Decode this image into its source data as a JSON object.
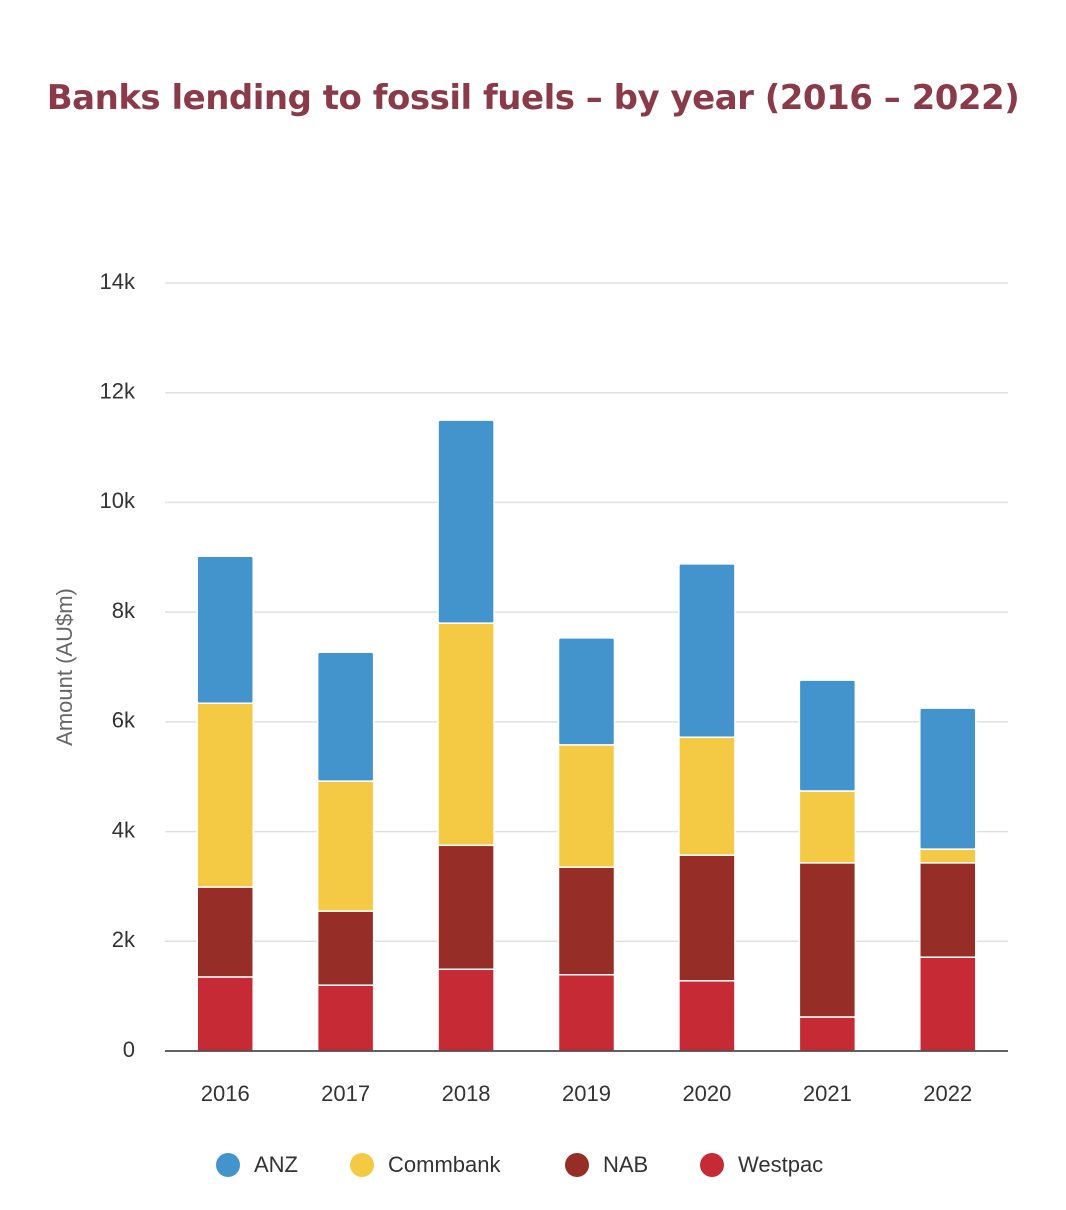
{
  "chart_data": {
    "type": "stacked-bar",
    "title": "Banks lending to fossil fuels – by year (2016 – 2022)",
    "y_label": "Amount (AU$m)",
    "categories": [
      "2016",
      "2017",
      "2018",
      "2019",
      "2020",
      "2021",
      "2022"
    ],
    "series": [
      {
        "name": "ANZ",
        "color": "#4394cc",
        "values": [
          2680,
          2350,
          3700,
          1950,
          3160,
          2020,
          2570
        ]
      },
      {
        "name": "Commbank",
        "color": "#f4ca44",
        "values": [
          3350,
          2370,
          4050,
          2230,
          2150,
          1310,
          250
        ]
      },
      {
        "name": "NAB",
        "color": "#962d26",
        "values": [
          1640,
          1350,
          2260,
          1960,
          2290,
          2810,
          1720
        ]
      },
      {
        "name": "Westpac",
        "color": "#c52a35",
        "values": [
          1350,
          1200,
          1490,
          1390,
          1280,
          620,
          1710
        ]
      }
    ],
    "ylim": [
      0,
      14000
    ],
    "yticks": [
      0,
      {
        "value": 2000,
        "label": "2k"
      },
      {
        "value": 4000,
        "label": "4k"
      },
      {
        "value": 6000,
        "label": "6k"
      },
      {
        "value": 8000,
        "label": "8k"
      },
      {
        "value": 10000,
        "label": "10k"
      },
      {
        "value": 12000,
        "label": "12k"
      },
      {
        "value": 14000,
        "label": "14k"
      }
    ],
    "grid": true
  }
}
